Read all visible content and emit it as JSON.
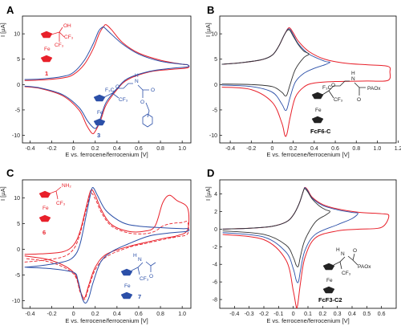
{
  "chart_data": [
    {
      "panel": "A",
      "type": "line",
      "xlabel": "E vs. ferrocene/ferrocenium [V]",
      "ylabel": "I [µA]",
      "xlim": [
        -0.47,
        1.08
      ],
      "ylim": [
        -11.5,
        13.5
      ],
      "xticks": [
        "-0.4",
        "-0.2",
        "0",
        "0.2",
        "0.4",
        "0.6",
        "0.8",
        "1.0"
      ],
      "xtick_values": [
        -0.4,
        -0.2,
        0,
        0.2,
        0.4,
        0.6,
        0.8,
        1.0
      ],
      "yticks": [
        "-10",
        "-5",
        "0",
        "5",
        "10"
      ],
      "ytick_values": [
        -10,
        -5,
        0,
        5,
        10
      ],
      "compounds": [
        {
          "label": "1",
          "color": "#e8202a"
        },
        {
          "label": "3",
          "color": "#2b4fa8"
        }
      ],
      "series": [
        {
          "color": "#e8202a",
          "width": 1.0,
          "dash": "",
          "x": [
            -0.45,
            -0.3,
            -0.1,
            0.0,
            0.1,
            0.18,
            0.24,
            0.28,
            0.3,
            0.35,
            0.45,
            0.6,
            0.8,
            1.0,
            1.05,
            1.05,
            0.9,
            0.7,
            0.5,
            0.4,
            0.3,
            0.25,
            0.2,
            0.17,
            0.12,
            0.05,
            -0.1,
            -0.3,
            -0.45
          ],
          "y": [
            0.8,
            0.9,
            1.3,
            2.0,
            4.0,
            7.0,
            10.2,
            11.5,
            11.8,
            10.8,
            8.3,
            6.2,
            4.8,
            4.0,
            3.9,
            3.3,
            3.0,
            2.5,
            1.0,
            -1.0,
            -4.0,
            -7.0,
            -9.2,
            -9.6,
            -8.0,
            -5.0,
            -2.2,
            -0.8,
            -0.4
          ]
        },
        {
          "color": "#2b4fa8",
          "width": 1.0,
          "dash": "",
          "x": [
            -0.45,
            -0.3,
            -0.1,
            0.0,
            0.1,
            0.18,
            0.23,
            0.26,
            0.28,
            0.33,
            0.45,
            0.6,
            0.8,
            1.0,
            1.05,
            1.05,
            0.9,
            0.7,
            0.5,
            0.4,
            0.3,
            0.25,
            0.22,
            0.19,
            0.13,
            0.05,
            -0.1,
            -0.3,
            -0.45
          ],
          "y": [
            1.0,
            1.1,
            1.6,
            2.4,
            4.8,
            8.0,
            10.5,
            11.2,
            11.3,
            10.3,
            8.0,
            6.0,
            4.6,
            4.0,
            3.9,
            3.5,
            3.2,
            2.6,
            1.2,
            -0.8,
            -3.5,
            -6.5,
            -8.2,
            -8.6,
            -7.2,
            -4.5,
            -2.0,
            -0.7,
            -0.3
          ]
        }
      ]
    },
    {
      "panel": "B",
      "type": "line",
      "xlabel": "E vs. ferrocene/ferrocenium [V]",
      "ylabel": "I [µA]",
      "xlim": [
        -0.5,
        1.18
      ],
      "ylim": [
        -11.5,
        13.5
      ],
      "xticks": [
        "-0.4",
        "-0.2",
        "0",
        "0.2",
        "0.4",
        "0.6",
        "0.8",
        "1.0",
        "1.2"
      ],
      "xtick_values": [
        -0.4,
        -0.2,
        0,
        0.2,
        0.4,
        0.6,
        0.8,
        1.0,
        1.2
      ],
      "yticks": [
        "-10",
        "-5",
        "0",
        "5",
        "10"
      ],
      "ytick_values": [
        -10,
        -5,
        0,
        5,
        10
      ],
      "compounds": [
        {
          "label": "FcF6-C",
          "color": "#000000"
        }
      ],
      "series": [
        {
          "color": "#e8202a",
          "width": 1.0,
          "dash": "",
          "x": [
            -0.48,
            -0.3,
            -0.1,
            0.0,
            0.06,
            0.12,
            0.16,
            0.2,
            0.25,
            0.35,
            0.5,
            0.7,
            0.9,
            1.1,
            1.12,
            1.1,
            0.9,
            0.6,
            0.4,
            0.3,
            0.22,
            0.17,
            0.14,
            0.12,
            0.09,
            0.0,
            -0.2,
            -0.48
          ],
          "y": [
            4.0,
            4.3,
            4.9,
            5.8,
            7.5,
            10.0,
            11.2,
            10.2,
            8.5,
            6.5,
            5.0,
            4.2,
            3.9,
            3.6,
            2.5,
            0.8,
            0.7,
            0.6,
            0.3,
            -0.5,
            -2.5,
            -6.5,
            -9.7,
            -10.0,
            -7.5,
            -3.5,
            -1.0,
            -0.5
          ]
        },
        {
          "color": "#2b4fa8",
          "width": 0.9,
          "dash": "",
          "x": [
            -0.48,
            -0.3,
            -0.1,
            0.0,
            0.06,
            0.12,
            0.16,
            0.2,
            0.25,
            0.35,
            0.5,
            0.55,
            0.5,
            0.4,
            0.3,
            0.22,
            0.17,
            0.14,
            0.12,
            0.09,
            0.0,
            -0.2,
            -0.48
          ],
          "y": [
            4.0,
            4.3,
            4.9,
            5.8,
            7.5,
            10.0,
            11.0,
            9.8,
            8.0,
            6.0,
            4.6,
            4.4,
            3.9,
            3.2,
            2.2,
            0.5,
            -2.5,
            -4.8,
            -5.0,
            -3.8,
            -1.5,
            -0.4,
            -0.1
          ]
        },
        {
          "color": "#333333",
          "width": 0.9,
          "dash": "",
          "x": [
            -0.48,
            -0.3,
            -0.1,
            0.0,
            0.06,
            0.12,
            0.16,
            0.2,
            0.25,
            0.3,
            0.35,
            0.3,
            0.22,
            0.17,
            0.14,
            0.12,
            0.09,
            0.0,
            -0.2,
            -0.48
          ],
          "y": [
            4.0,
            4.3,
            4.9,
            5.8,
            7.5,
            10.0,
            10.8,
            9.5,
            7.8,
            6.6,
            6.0,
            5.3,
            3.0,
            0.0,
            -2.0,
            -2.2,
            -1.5,
            -0.4,
            0.0,
            0.1
          ]
        }
      ]
    },
    {
      "panel": "C",
      "type": "line",
      "xlabel": "E vs. ferrocene/ferrocenium [V]",
      "ylabel": "I [µA]",
      "xlim": [
        -0.47,
        1.08
      ],
      "ylim": [
        -11.5,
        13.5
      ],
      "xticks": [
        "-0.4",
        "-0.2",
        "0",
        "0.2",
        "0.4",
        "0.6",
        "0.8",
        "1.0"
      ],
      "xtick_values": [
        -0.4,
        -0.2,
        0,
        0.2,
        0.4,
        0.6,
        0.8,
        1.0
      ],
      "yticks": [
        "-10",
        "-5",
        "0",
        "5",
        "10"
      ],
      "ytick_values": [
        -10,
        -5,
        0,
        5,
        10
      ],
      "compounds": [
        {
          "label": "6",
          "color": "#e8202a"
        },
        {
          "label": "7",
          "color": "#2b4fa8"
        }
      ],
      "series": [
        {
          "color": "#e8202a",
          "width": 1.0,
          "dash": "",
          "x": [
            -0.45,
            -0.3,
            -0.1,
            0.0,
            0.06,
            0.12,
            0.16,
            0.2,
            0.26,
            0.35,
            0.5,
            0.65,
            0.75,
            0.82,
            0.88,
            0.95,
            1.05,
            1.05,
            0.95,
            0.85,
            0.7,
            0.5,
            0.3,
            0.2,
            0.14,
            0.1,
            0.06,
            0.0,
            -0.2,
            -0.45
          ],
          "y": [
            -1.0,
            -0.9,
            -0.5,
            0.8,
            3.5,
            8.5,
            11.5,
            10.5,
            7.5,
            4.8,
            3.5,
            3.5,
            4.5,
            9.0,
            10.5,
            9.5,
            8.0,
            3.8,
            2.6,
            2.2,
            1.5,
            0.5,
            -1.0,
            -3.5,
            -7.0,
            -9.5,
            -8.0,
            -4.5,
            -2.2,
            -1.3
          ]
        },
        {
          "color": "#e8202a",
          "width": 0.9,
          "dash": "4,2",
          "x": [
            -0.45,
            -0.3,
            -0.1,
            0.0,
            0.06,
            0.12,
            0.16,
            0.2,
            0.26,
            0.35,
            0.5,
            0.65,
            0.75,
            0.82,
            0.9,
            1.0,
            1.05,
            1.05,
            0.95,
            0.85,
            0.7,
            0.5,
            0.3,
            0.2,
            0.14,
            0.1,
            0.06,
            0.0,
            -0.2,
            -0.45
          ],
          "y": [
            -2.5,
            -2.2,
            -1.5,
            0.0,
            3.0,
            8.0,
            10.8,
            9.8,
            7.0,
            4.5,
            3.2,
            3.0,
            3.5,
            4.5,
            5.0,
            5.2,
            5.3,
            3.0,
            2.4,
            2.0,
            1.3,
            0.3,
            -1.5,
            -4.0,
            -7.5,
            -9.8,
            -8.3,
            -4.8,
            -2.6,
            -1.8
          ]
        },
        {
          "color": "#2b4fa8",
          "width": 1.0,
          "dash": "",
          "x": [
            -0.45,
            -0.3,
            -0.1,
            0.0,
            0.06,
            0.12,
            0.16,
            0.18,
            0.22,
            0.3,
            0.45,
            0.6,
            0.8,
            1.0,
            1.05,
            1.05,
            0.9,
            0.7,
            0.5,
            0.35,
            0.25,
            0.18,
            0.14,
            0.11,
            0.08,
            0.04,
            0.0,
            -0.2,
            -0.45
          ],
          "y": [
            -3.5,
            -3.2,
            -2.5,
            -1.5,
            1.0,
            7.0,
            11.0,
            12.0,
            10.5,
            7.5,
            5.2,
            4.5,
            4.2,
            4.0,
            4.0,
            3.5,
            3.2,
            2.6,
            1.0,
            -0.5,
            -2.5,
            -6.5,
            -9.5,
            -10.5,
            -9.5,
            -6.0,
            -4.5,
            -3.8,
            -3.5
          ]
        }
      ]
    },
    {
      "panel": "D",
      "type": "line",
      "xlabel": "E vs. ferrocene/ferrocenium [V]",
      "ylabel": "I [µA]",
      "xlim": [
        -0.5,
        0.7
      ],
      "ylim": [
        -9.0,
        5.6
      ],
      "xticks": [
        "-0.4",
        "-0.3",
        "-0.2",
        "-0.1",
        "0",
        "0.1",
        "0.2",
        "0.3",
        "0.4",
        "0.5",
        "0.6"
      ],
      "xtick_values": [
        -0.4,
        -0.3,
        -0.2,
        -0.1,
        0,
        0.1,
        0.2,
        0.3,
        0.4,
        0.5,
        0.6
      ],
      "yticks": [
        "-8",
        "-6",
        "-4",
        "-2",
        "0",
        "2",
        "4"
      ],
      "ytick_values": [
        -8,
        -6,
        -4,
        -2,
        0,
        2,
        4
      ],
      "compounds": [
        {
          "label": "FcF3-C2",
          "color": "#000000"
        }
      ],
      "series": [
        {
          "color": "#e8202a",
          "width": 1.0,
          "dash": "",
          "x": [
            -0.48,
            -0.3,
            -0.15,
            -0.05,
            0.0,
            0.04,
            0.07,
            0.08,
            0.1,
            0.13,
            0.2,
            0.3,
            0.45,
            0.6,
            0.65,
            0.6,
            0.45,
            0.3,
            0.15,
            0.08,
            0.05,
            0.03,
            0.02,
            0.0,
            -0.05,
            -0.2,
            -0.48
          ],
          "y": [
            0.0,
            0.1,
            0.3,
            0.8,
            1.6,
            2.9,
            4.4,
            4.75,
            4.4,
            3.6,
            2.8,
            2.3,
            1.9,
            1.75,
            1.5,
            0.2,
            0.0,
            -0.2,
            -1.0,
            -3.2,
            -6.0,
            -8.6,
            -8.8,
            -7.0,
            -3.5,
            -1.2,
            -0.6
          ]
        },
        {
          "color": "#2b4fa8",
          "width": 0.9,
          "dash": "",
          "x": [
            -0.48,
            -0.3,
            -0.15,
            -0.05,
            0.0,
            0.04,
            0.07,
            0.08,
            0.1,
            0.13,
            0.2,
            0.3,
            0.4,
            0.44,
            0.4,
            0.3,
            0.15,
            0.08,
            0.05,
            0.035,
            0.02,
            0.0,
            -0.05,
            -0.2,
            -0.48
          ],
          "y": [
            0.0,
            0.1,
            0.3,
            0.8,
            1.6,
            2.9,
            4.4,
            4.7,
            4.3,
            3.5,
            2.7,
            2.2,
            1.9,
            1.8,
            1.2,
            0.5,
            -0.6,
            -2.4,
            -4.6,
            -6.0,
            -5.8,
            -4.5,
            -2.6,
            -0.9,
            -0.4
          ]
        },
        {
          "color": "#333333",
          "width": 0.9,
          "dash": "",
          "x": [
            -0.48,
            -0.3,
            -0.15,
            -0.05,
            0.0,
            0.04,
            0.07,
            0.08,
            0.1,
            0.13,
            0.18,
            0.22,
            0.25,
            0.22,
            0.15,
            0.08,
            0.05,
            0.035,
            0.02,
            0.0,
            -0.05,
            -0.2,
            -0.48
          ],
          "y": [
            0.0,
            0.1,
            0.3,
            0.8,
            1.6,
            2.9,
            4.4,
            4.6,
            4.2,
            3.4,
            2.6,
            2.2,
            2.0,
            1.6,
            0.8,
            -1.2,
            -3.0,
            -4.2,
            -4.1,
            -3.2,
            -1.8,
            -0.6,
            -0.2
          ]
        }
      ]
    }
  ]
}
